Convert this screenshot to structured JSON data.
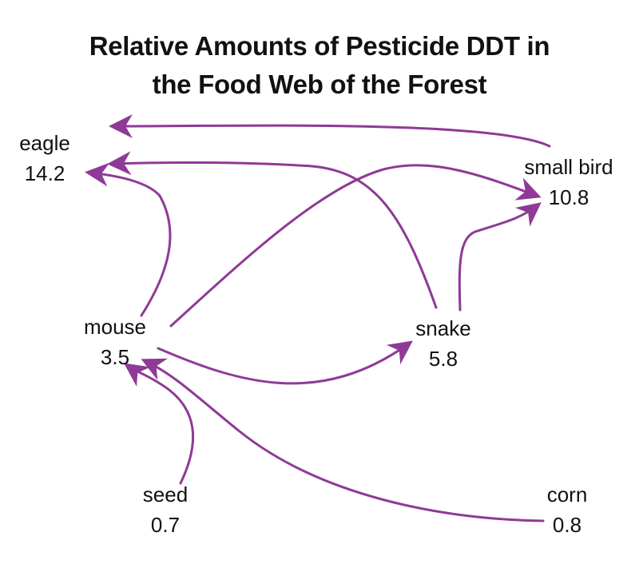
{
  "title": {
    "line1": "Relative Amounts of Pesticide DDT in",
    "line2": "the Food Web of the Forest"
  },
  "colors": {
    "arrow": "#8e3a96",
    "text": "#111111",
    "background": "#ffffff"
  },
  "nodes": {
    "eagle": {
      "label": "eagle",
      "value": "14.2"
    },
    "small_bird": {
      "label": "small bird",
      "value": "10.8"
    },
    "mouse": {
      "label": "mouse",
      "value": "3.5"
    },
    "snake": {
      "label": "snake",
      "value": "5.8"
    },
    "seed": {
      "label": "seed",
      "value": "0.7"
    },
    "corn": {
      "label": "corn",
      "value": "0.8"
    }
  },
  "edges": [
    {
      "from": "small bird",
      "to": "eagle"
    },
    {
      "from": "snake",
      "to": "eagle"
    },
    {
      "from": "mouse",
      "to": "eagle"
    },
    {
      "from": "mouse",
      "to": "small bird"
    },
    {
      "from": "snake",
      "to": "small bird"
    },
    {
      "from": "mouse",
      "to": "snake"
    },
    {
      "from": "seed",
      "to": "mouse"
    },
    {
      "from": "corn",
      "to": "mouse"
    }
  ]
}
